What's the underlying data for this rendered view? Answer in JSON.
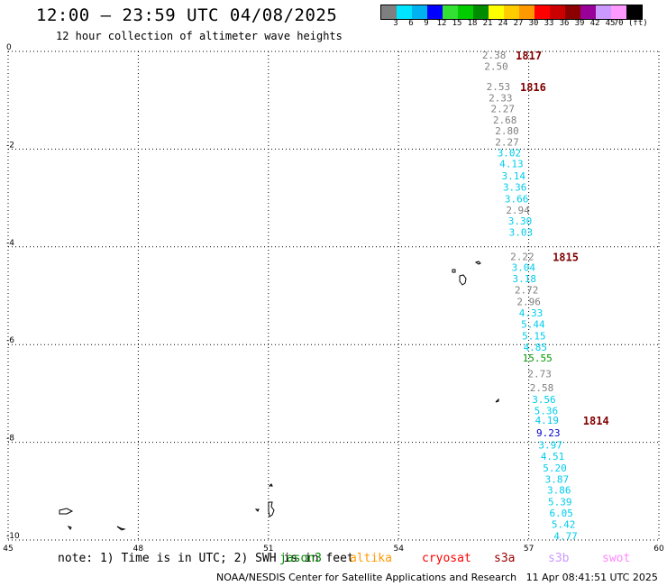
{
  "header": {
    "title": "12:00 – 23:59 UTC 04/08/2025",
    "subtitle": "12 hour collection of altimeter wave heights"
  },
  "colorbar": {
    "colors": [
      "#7f7f7f",
      "#00e5ff",
      "#00b3f0",
      "#0000ff",
      "#33e033",
      "#00cc00",
      "#008c00",
      "#ffff00",
      "#ffcc00",
      "#ff9900",
      "#ff0000",
      "#cc0000",
      "#8b0000",
      "#990099",
      "#cc99ff",
      "#ff99ff",
      "#000000"
    ],
    "labels": [
      "3",
      "6",
      "9",
      "12",
      "15",
      "18",
      "21",
      "24",
      "27",
      "30",
      "33",
      "36",
      "39",
      "42",
      "45",
      "70 (ft)"
    ]
  },
  "map": {
    "x_ticks": [
      "45",
      "48",
      "51",
      "54",
      "57",
      "60"
    ],
    "y_ticks": [
      "0",
      "-2",
      "-4",
      "-6",
      "-8",
      "-10"
    ],
    "xlim": [
      45,
      60
    ],
    "ylim": [
      -10,
      0
    ]
  },
  "chart_data": {
    "type": "scatter",
    "xlim": [
      45,
      60
    ],
    "ylim": [
      -10,
      0
    ],
    "x_ticks": [
      45,
      48,
      51,
      54,
      57,
      60
    ],
    "y_ticks": [
      0,
      -2,
      -4,
      -6,
      -8,
      -10
    ],
    "grid": true,
    "points": [
      {
        "lon": 56.2,
        "lat": -0.07,
        "label": "2.38",
        "color": "#808080"
      },
      {
        "lon": 56.25,
        "lat": -0.3,
        "label": "2.50",
        "color": "#808080"
      },
      {
        "lon": 56.3,
        "lat": -0.72,
        "label": "2.53",
        "color": "#808080"
      },
      {
        "lon": 56.35,
        "lat": -0.95,
        "label": "2.33",
        "color": "#808080"
      },
      {
        "lon": 56.4,
        "lat": -1.17,
        "label": "2.27",
        "color": "#808080"
      },
      {
        "lon": 56.45,
        "lat": -1.4,
        "label": "2.68",
        "color": "#808080"
      },
      {
        "lon": 56.5,
        "lat": -1.62,
        "label": "2.80",
        "color": "#808080"
      },
      {
        "lon": 56.5,
        "lat": -1.85,
        "label": "2.27",
        "color": "#808080"
      },
      {
        "lon": 56.55,
        "lat": -2.08,
        "label": "3.02",
        "color": "#00ccee"
      },
      {
        "lon": 56.6,
        "lat": -2.3,
        "label": "4.13",
        "color": "#00ccee"
      },
      {
        "lon": 56.65,
        "lat": -2.55,
        "label": "3.14",
        "color": "#00ccee"
      },
      {
        "lon": 56.68,
        "lat": -2.78,
        "label": "3.36",
        "color": "#00ccee"
      },
      {
        "lon": 56.72,
        "lat": -3.02,
        "label": "3.66",
        "color": "#00ccee"
      },
      {
        "lon": 56.75,
        "lat": -3.25,
        "label": "2.94",
        "color": "#808080"
      },
      {
        "lon": 56.8,
        "lat": -3.47,
        "label": "3.30",
        "color": "#00ccee"
      },
      {
        "lon": 56.82,
        "lat": -3.7,
        "label": "3.03",
        "color": "#00ccee"
      },
      {
        "lon": 56.85,
        "lat": -4.2,
        "label": "2.22",
        "color": "#808080"
      },
      {
        "lon": 56.88,
        "lat": -4.42,
        "label": "3.04",
        "color": "#00ccee"
      },
      {
        "lon": 56.9,
        "lat": -4.65,
        "label": "3.18",
        "color": "#00ccee"
      },
      {
        "lon": 56.95,
        "lat": -4.88,
        "label": "2.72",
        "color": "#808080"
      },
      {
        "lon": 57.0,
        "lat": -5.12,
        "label": "2.96",
        "color": "#808080"
      },
      {
        "lon": 57.05,
        "lat": -5.35,
        "label": "4.33",
        "color": "#00ccee"
      },
      {
        "lon": 57.1,
        "lat": -5.58,
        "label": "5.44",
        "color": "#00ccee"
      },
      {
        "lon": 57.12,
        "lat": -5.82,
        "label": "5.15",
        "color": "#00ccee"
      },
      {
        "lon": 57.15,
        "lat": -6.05,
        "label": "4.85",
        "color": "#00ccee"
      },
      {
        "lon": 57.2,
        "lat": -6.27,
        "label": "15.55",
        "color": "#009900"
      },
      {
        "lon": 57.25,
        "lat": -6.6,
        "label": "2.73",
        "color": "#808080"
      },
      {
        "lon": 57.3,
        "lat": -6.88,
        "label": "2.58",
        "color": "#808080"
      },
      {
        "lon": 57.35,
        "lat": -7.12,
        "label": "3.56",
        "color": "#00ccee"
      },
      {
        "lon": 57.4,
        "lat": -7.35,
        "label": "5.36",
        "color": "#00ccee"
      },
      {
        "lon": 57.42,
        "lat": -7.55,
        "label": "4.19",
        "color": "#00ccee"
      },
      {
        "lon": 57.45,
        "lat": -7.8,
        "label": "9.23",
        "color": "#0000cc"
      },
      {
        "lon": 57.5,
        "lat": -8.05,
        "label": "3.97",
        "color": "#00ccee"
      },
      {
        "lon": 57.55,
        "lat": -8.28,
        "label": "4.51",
        "color": "#00ccee"
      },
      {
        "lon": 57.6,
        "lat": -8.52,
        "label": "5.20",
        "color": "#00ccee"
      },
      {
        "lon": 57.65,
        "lat": -8.75,
        "label": "3.87",
        "color": "#00ccee"
      },
      {
        "lon": 57.7,
        "lat": -8.98,
        "label": "3.86",
        "color": "#00ccee"
      },
      {
        "lon": 57.72,
        "lat": -9.22,
        "label": "5.39",
        "color": "#00ccee"
      },
      {
        "lon": 57.75,
        "lat": -9.45,
        "label": "6.05",
        "color": "#00ccee"
      },
      {
        "lon": 57.8,
        "lat": -9.68,
        "label": "5.42",
        "color": "#00ccee"
      },
      {
        "lon": 57.85,
        "lat": -9.92,
        "label": "4.77",
        "color": "#00ccee"
      }
    ],
    "time_labels": [
      {
        "lon": 56.7,
        "lat": -0.07,
        "label": "1817"
      },
      {
        "lon": 56.8,
        "lat": -0.72,
        "label": "1816"
      },
      {
        "lon": 57.55,
        "lat": -4.2,
        "label": "1815"
      },
      {
        "lon": 58.25,
        "lat": -7.55,
        "label": "1814"
      }
    ],
    "time_label_color": "#800000"
  },
  "legend_note": {
    "text": "note: 1) Time is in UTC; 2) SWH is in feet",
    "satellites": [
      {
        "name": "jason3",
        "color": "#008800"
      },
      {
        "name": "altika",
        "color": "#ff9900"
      },
      {
        "name": "cryosat",
        "color": "#ff0000"
      },
      {
        "name": "s3a",
        "color": "#990000"
      },
      {
        "name": "s3b",
        "color": "#cc99ff"
      },
      {
        "name": "swot",
        "color": "#ff88ff"
      }
    ]
  },
  "footer": {
    "credit": "NOAA/NESDIS Center for Satellite Applications and Research",
    "timestamp": "11 Apr 08:41:51 UTC 2025"
  }
}
